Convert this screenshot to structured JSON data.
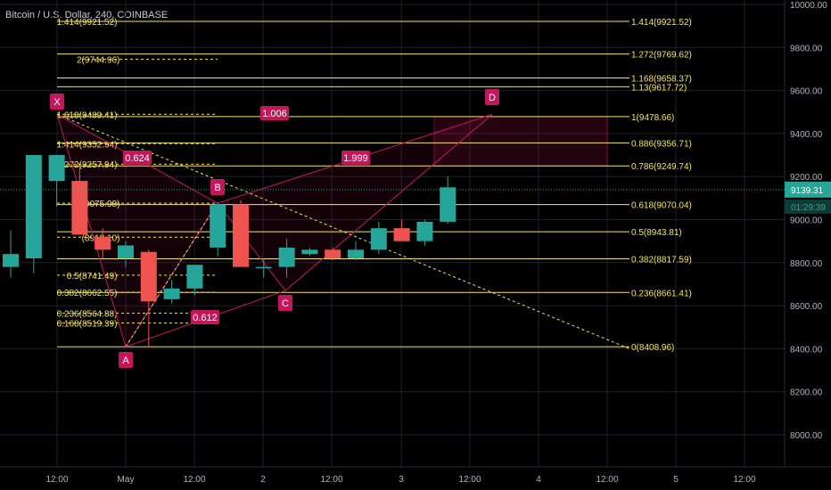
{
  "title": "Bitcoin / U.S. Dollar, 240, COINBASE",
  "colors": {
    "up": "#26a69a",
    "down": "#ef5350",
    "fib": "#f5e663",
    "pattern": "#c2185b",
    "grid": "#1e222d",
    "axis_text": "#b2b5be"
  },
  "chart_data": {
    "type": "candlestick",
    "x_tick_labels": [
      "12:00",
      "May",
      "12:00",
      "2",
      "12:00",
      "3",
      "12:00",
      "4",
      "12:00",
      "5",
      "12:00"
    ],
    "y_tick_labels": [
      "8000.00",
      "8200.00",
      "8400.00",
      "8600.00",
      "8800.00",
      "9000.00",
      "9200.00",
      "9400.00",
      "9600.00",
      "9800.00",
      "10000.00"
    ],
    "ylim": [
      7900,
      10000
    ],
    "grid": true,
    "candles": [
      {
        "o": 8780,
        "h": 8950,
        "l": 8730,
        "c": 8840
      },
      {
        "o": 8820,
        "h": 9300,
        "l": 8750,
        "c": 9300
      },
      {
        "o": 9180,
        "h": 9300,
        "l": 9060,
        "c": 9300
      },
      {
        "o": 9180,
        "h": 9250,
        "l": 8930,
        "c": 8930
      },
      {
        "o": 8920,
        "h": 8960,
        "l": 8820,
        "c": 8860
      },
      {
        "o": 8820,
        "h": 8900,
        "l": 8780,
        "c": 8880
      },
      {
        "o": 8850,
        "h": 8860,
        "l": 8409,
        "c": 8620
      },
      {
        "o": 8630,
        "h": 8720,
        "l": 8610,
        "c": 8680
      },
      {
        "o": 8680,
        "h": 8780,
        "l": 8650,
        "c": 8790
      },
      {
        "o": 8870,
        "h": 9080,
        "l": 8830,
        "c": 9070
      },
      {
        "o": 9070,
        "h": 9090,
        "l": 8780,
        "c": 8780
      },
      {
        "o": 8780,
        "h": 8820,
        "l": 8730,
        "c": 8780
      },
      {
        "o": 8780,
        "h": 8910,
        "l": 8730,
        "c": 8870
      },
      {
        "o": 8840,
        "h": 8870,
        "l": 8830,
        "c": 8860
      },
      {
        "o": 8860,
        "h": 8870,
        "l": 8810,
        "c": 8820
      },
      {
        "o": 8820,
        "h": 8900,
        "l": 8810,
        "c": 8860
      },
      {
        "o": 8860,
        "h": 8990,
        "l": 8840,
        "c": 8960
      },
      {
        "o": 8960,
        "h": 9000,
        "l": 8900,
        "c": 8900
      },
      {
        "o": 8900,
        "h": 9000,
        "l": 8880,
        "c": 8990
      },
      {
        "o": 8990,
        "h": 9200,
        "l": 8980,
        "c": 9150
      }
    ],
    "fib_right": [
      {
        "label": "1.414(9921.52)",
        "price": 9921.52
      },
      {
        "label": "1.272(9769.62)",
        "price": 9769.62
      },
      {
        "label": "1.168(9658.37)",
        "price": 9658.37
      },
      {
        "label": "1.13(9617.72)",
        "price": 9617.72
      },
      {
        "label": "1(9478.66)",
        "price": 9478.66
      },
      {
        "label": "0.886(9356.71)",
        "price": 9356.71
      },
      {
        "label": "0.786(9249.74)",
        "price": 9249.74
      },
      {
        "label": "0.618(9070.04)",
        "price": 9070.04
      },
      {
        "label": "0.5(8943.81)",
        "price": 8943.81
      },
      {
        "label": "0.382(8817.59)",
        "price": 8817.59
      },
      {
        "label": "0.236(8661.41)",
        "price": 8661.41
      },
      {
        "label": "0(8408.96)",
        "price": 8408.96
      }
    ],
    "fib_left": [
      {
        "label": "1.414(9921.52)",
        "price": 9921.52
      },
      {
        "label": "2(9744.96)",
        "price": 9744.96
      },
      {
        "label": "1.618(9489.41)",
        "price": 9489.41
      },
      {
        "label": "1.414(9352.94)",
        "price": 9352.94
      },
      {
        "label": "1.272(9257.94)",
        "price": 9257.94
      },
      {
        "label": "(9075.98)",
        "price": 9075.98
      },
      {
        "label": "(8918.10)",
        "price": 8918.1
      },
      {
        "label": "0.5(8741.49)",
        "price": 8741.49
      },
      {
        "label": "0.382(8662.55)",
        "price": 8662.55
      },
      {
        "label": "0.236(8564.88)",
        "price": 8564.88
      },
      {
        "label": "0.168(8519.39)",
        "price": 8519.39
      }
    ],
    "pattern_points": [
      {
        "label": "X",
        "price": 9489
      },
      {
        "label": "A",
        "price": 8409
      },
      {
        "label": "B",
        "price": 9076
      },
      {
        "label": "C",
        "price": 8670
      },
      {
        "label": "D",
        "price": 9489
      }
    ],
    "ratios": [
      "1.006",
      "0.624",
      "1.999",
      "0.612"
    ],
    "price_badge": "9139.31",
    "timer_badge": "01:29:39"
  }
}
